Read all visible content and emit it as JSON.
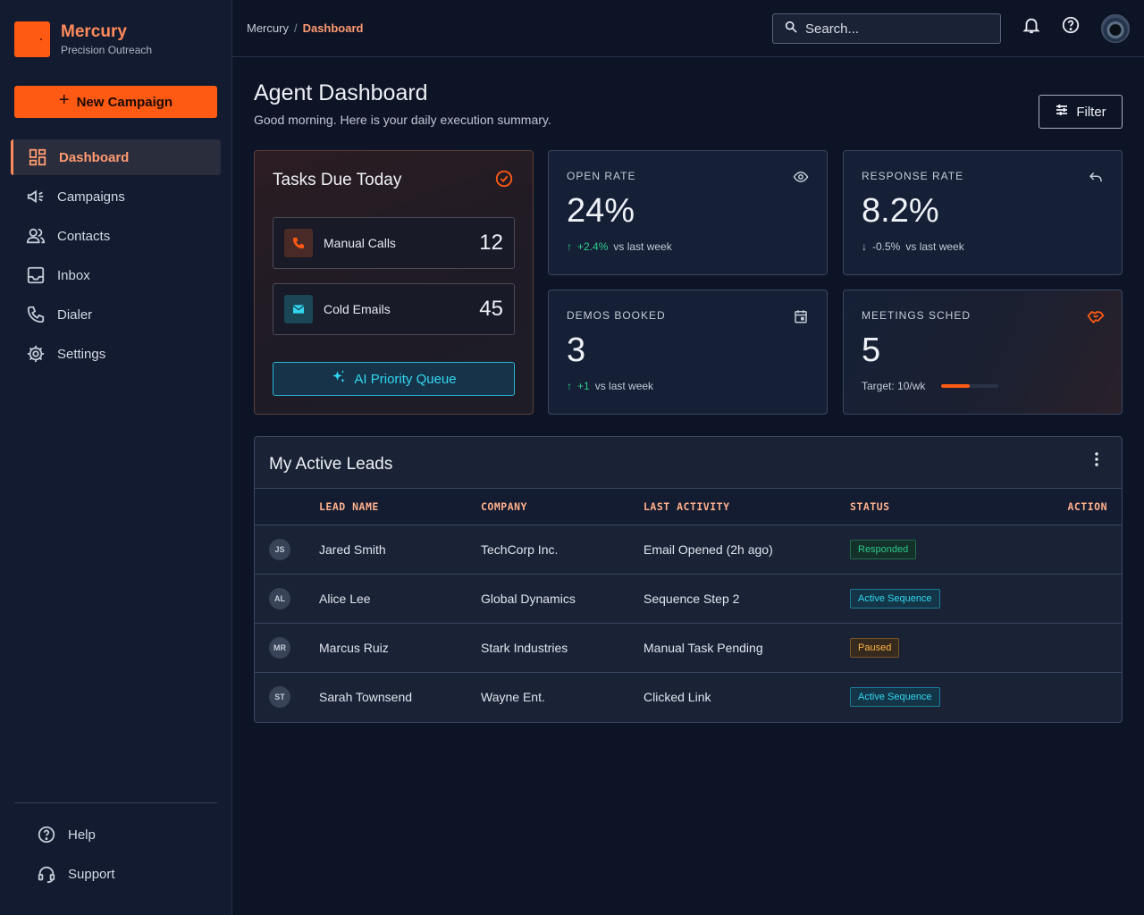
{
  "brand": {
    "name": "Mercury",
    "tagline": "Precision Outreach",
    "accent": "#ff5a14"
  },
  "sidebar": {
    "new_campaign_label": "New Campaign",
    "items": [
      {
        "label": "Dashboard",
        "icon": "dashboard-icon",
        "active": true
      },
      {
        "label": "Campaigns",
        "icon": "megaphone-icon"
      },
      {
        "label": "Contacts",
        "icon": "contacts-icon"
      },
      {
        "label": "Inbox",
        "icon": "inbox-icon"
      },
      {
        "label": "Dialer",
        "icon": "phone-icon"
      },
      {
        "label": "Settings",
        "icon": "gear-icon"
      }
    ],
    "bottom_items": [
      {
        "label": "Help",
        "icon": "help-icon"
      },
      {
        "label": "Support",
        "icon": "headset-icon"
      }
    ]
  },
  "header": {
    "breadcrumb": {
      "root": "Mercury",
      "separator": "/",
      "current": "Dashboard"
    },
    "search_placeholder": "Search..."
  },
  "page": {
    "title": "Agent Dashboard",
    "subtitle": "Good morning. Here is your daily execution summary.",
    "filter_label": "Filter"
  },
  "tasks": {
    "title": "Tasks Due Today",
    "items": [
      {
        "label": "Manual Calls",
        "count": "12",
        "icon": "phone-icon"
      },
      {
        "label": "Cold Emails",
        "count": "45",
        "icon": "mail-icon"
      }
    ],
    "ai_button_label": "AI Priority Queue"
  },
  "stats": {
    "open_rate": {
      "label": "OPEN RATE",
      "value": "24%",
      "trend": "+2.4%",
      "trend_dir": "up",
      "compare": "vs last week",
      "icon": "eye-icon"
    },
    "response_rate": {
      "label": "RESPONSE RATE",
      "value": "8.2%",
      "trend": "-0.5%",
      "trend_dir": "down",
      "compare": "vs last week",
      "icon": "reply-icon"
    },
    "demos_booked": {
      "label": "DEMOS BOOKED",
      "value": "3",
      "trend": "+1",
      "trend_dir": "up",
      "compare": "vs last week",
      "icon": "calendar-icon"
    },
    "meetings": {
      "label": "MEETINGS SCHED",
      "value": "5",
      "target": "Target: 10/wk",
      "progress": 0.5,
      "icon": "handshake-icon"
    }
  },
  "leads": {
    "title": "My Active Leads",
    "columns": [
      "LEAD NAME",
      "COMPANY",
      "LAST ACTIVITY",
      "STATUS",
      "ACTION"
    ],
    "rows": [
      {
        "initials": "JS",
        "name": "Jared Smith",
        "company": "TechCorp Inc.",
        "activity": "Email Opened (2h ago)",
        "status": "Responded",
        "status_type": "responded"
      },
      {
        "initials": "AL",
        "name": "Alice Lee",
        "company": "Global Dynamics",
        "activity": "Sequence Step 2",
        "status": "Active Sequence",
        "status_type": "active"
      },
      {
        "initials": "MR",
        "name": "Marcus Ruiz",
        "company": "Stark Industries",
        "activity": "Manual Task Pending",
        "status": "Paused",
        "status_type": "paused"
      },
      {
        "initials": "ST",
        "name": "Sarah Townsend",
        "company": "Wayne Ent.",
        "activity": "Clicked Link",
        "status": "Active Sequence",
        "status_type": "active"
      }
    ]
  }
}
